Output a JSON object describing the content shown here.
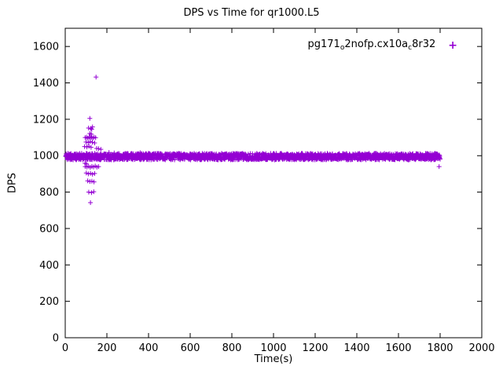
{
  "legend": {
    "parts": [
      "pg171",
      "o",
      "2nofp.cx10a",
      "c",
      "8r32"
    ],
    "marker": "+"
  },
  "chart_data": {
    "type": "scatter",
    "title": "DPS vs Time for qr1000.L5",
    "xlabel": "Time(s)",
    "ylabel": "DPS",
    "xlim": [
      0,
      2000
    ],
    "ylim": [
      0,
      1700
    ],
    "x_ticks": [
      0,
      200,
      400,
      600,
      800,
      1000,
      1200,
      1400,
      1600,
      1800,
      2000
    ],
    "y_ticks": [
      0,
      200,
      400,
      600,
      800,
      1000,
      1200,
      1400,
      1600
    ],
    "marker": "plus",
    "color": "#9400d3",
    "grid": false,
    "legend_position": "top-right-inside",
    "series": [
      {
        "name": "pg171o2nofp.cx10ac8r32",
        "band": {
          "x_start": 2,
          "x_end": 1800,
          "x_step": 1,
          "y_center": 995,
          "y_jitter": 18
        },
        "outliers": [
          [
            148,
            1432
          ],
          [
            118,
            1205
          ],
          [
            112,
            1152
          ],
          [
            123,
            1150
          ],
          [
            131,
            1158
          ],
          [
            127,
            1145
          ],
          [
            118,
            1122
          ],
          [
            125,
            1118
          ],
          [
            96,
            1100
          ],
          [
            103,
            1102
          ],
          [
            109,
            1096
          ],
          [
            115,
            1103
          ],
          [
            121,
            1098
          ],
          [
            127,
            1101
          ],
          [
            133,
            1097
          ],
          [
            139,
            1102
          ],
          [
            146,
            1099
          ],
          [
            100,
            1075
          ],
          [
            110,
            1072
          ],
          [
            120,
            1078
          ],
          [
            130,
            1074
          ],
          [
            141,
            1070
          ],
          [
            93,
            1050
          ],
          [
            104,
            1048
          ],
          [
            114,
            1052
          ],
          [
            124,
            1046
          ],
          [
            151,
            1040
          ],
          [
            160,
            1038
          ],
          [
            171,
            1035
          ],
          [
            210,
            1018
          ],
          [
            235,
            1015
          ],
          [
            300,
            1012
          ],
          [
            360,
            1016
          ],
          [
            400,
            1014
          ],
          [
            95,
            958
          ],
          [
            102,
            955
          ],
          [
            96,
            940
          ],
          [
            104,
            938
          ],
          [
            112,
            942
          ],
          [
            120,
            936
          ],
          [
            128,
            941
          ],
          [
            136,
            938
          ],
          [
            144,
            943
          ],
          [
            152,
            937
          ],
          [
            160,
            940
          ],
          [
            101,
            905
          ],
          [
            111,
            900
          ],
          [
            121,
            903
          ],
          [
            131,
            898
          ],
          [
            141,
            902
          ],
          [
            108,
            862
          ],
          [
            118,
            858
          ],
          [
            128,
            860
          ],
          [
            138,
            856
          ],
          [
            113,
            800
          ],
          [
            126,
            797
          ],
          [
            137,
            802
          ],
          [
            121,
            742
          ],
          [
            1795,
            940
          ]
        ]
      }
    ]
  }
}
